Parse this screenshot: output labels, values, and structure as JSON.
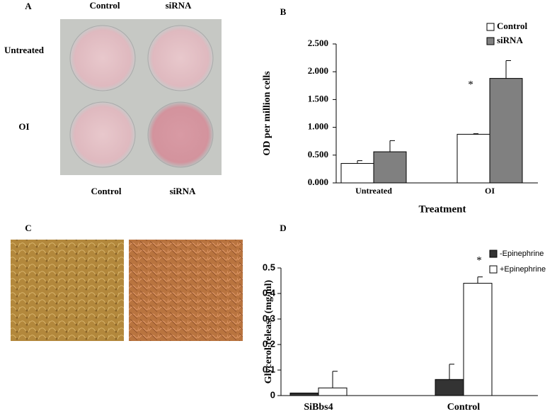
{
  "panels": {
    "a": {
      "label": "A",
      "top_labels": [
        "Control",
        "siRNA"
      ],
      "bottom_labels": [
        "Control",
        "siRNA"
      ],
      "row_labels": [
        "Untreated",
        "OI"
      ]
    },
    "c": {
      "label": "C"
    }
  },
  "chart_data": [
    {
      "type": "bar",
      "panel_label": "B",
      "ylabel": "OD per million cells",
      "xlabel": "Treatment",
      "annotation": "*",
      "categories": [
        "Untreated",
        "OI"
      ],
      "series": [
        {
          "name": "Control",
          "color": "#ffffff",
          "values": [
            0.35,
            0.875
          ],
          "errors": [
            0.05,
            0.01
          ]
        },
        {
          "name": "siRNA",
          "color": "#808080",
          "values": [
            0.56,
            1.88
          ],
          "errors": [
            0.2,
            0.32
          ]
        }
      ],
      "ylim": [
        0,
        2.5
      ],
      "yticks": [
        {
          "value": 0,
          "label": "0.000"
        },
        {
          "value": 0.5,
          "label": "0.500"
        },
        {
          "value": 1,
          "label": "1.000"
        },
        {
          "value": 1.5,
          "label": "1.500"
        },
        {
          "value": 2,
          "label": "2.000"
        },
        {
          "value": 2.5,
          "label": "2.500"
        }
      ],
      "legend": "top-right"
    },
    {
      "type": "bar",
      "panel_label": "D",
      "ylabel": "Glycerol release (mg/ml)",
      "annotation": "*",
      "categories": [
        "SiBbs4",
        "Control"
      ],
      "series": [
        {
          "name": "-Epinephrine",
          "color": "#333333",
          "values": [
            0.01,
            0.063
          ],
          "errors": [
            null,
            0.06
          ]
        },
        {
          "name": "+Epinephrine",
          "color": "#ffffff",
          "values": [
            0.03,
            0.44
          ],
          "errors": [
            0.065,
            0.025
          ]
        }
      ],
      "ylim": [
        0,
        0.5
      ],
      "yticks": [
        0,
        0.1,
        0.2,
        0.3,
        0.4,
        0.5
      ],
      "legend": "top-right"
    }
  ]
}
